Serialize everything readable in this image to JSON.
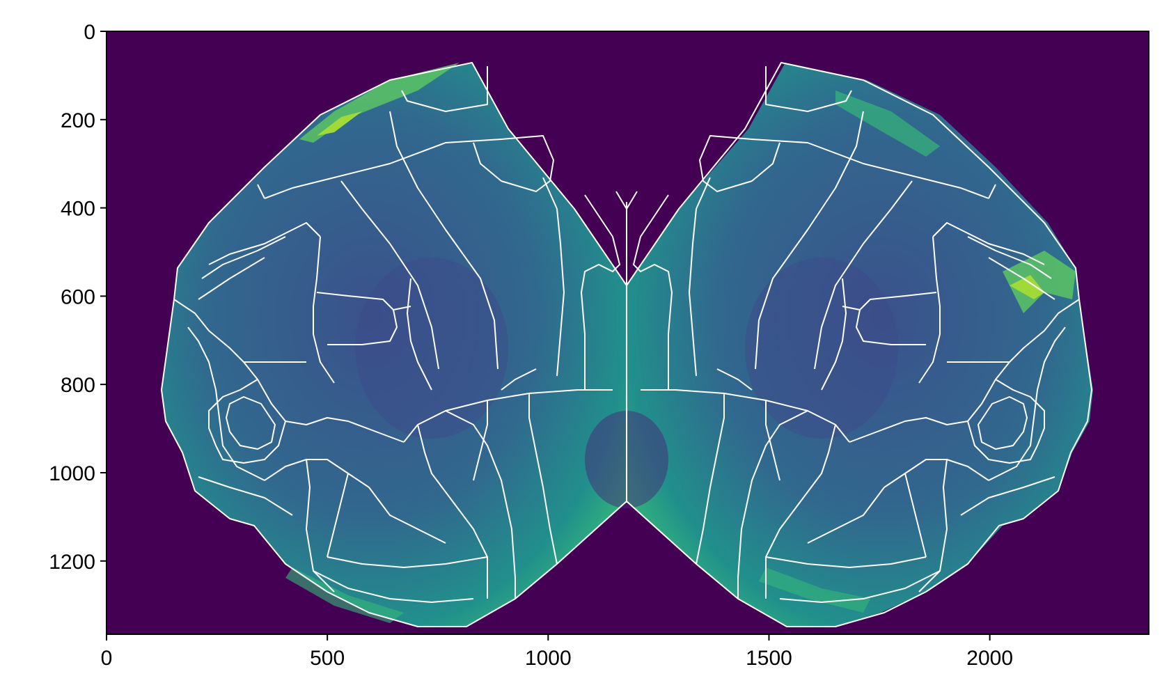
{
  "chart_data": {
    "type": "heatmap",
    "title": "",
    "xlabel": "",
    "ylabel": "",
    "x_range": [
      0,
      2360
    ],
    "y_range": [
      0,
      1366
    ],
    "y_inverted": true,
    "x_ticks": [
      0,
      500,
      1000,
      1500,
      2000
    ],
    "y_ticks": [
      0,
      200,
      400,
      600,
      800,
      1000,
      1200
    ],
    "x_tick_labels": [
      "0",
      "500",
      "1000",
      "1500",
      "2000"
    ],
    "y_tick_labels": [
      "0",
      "200",
      "400",
      "600",
      "800",
      "1000",
      "1200"
    ],
    "colormap": "viridis",
    "background_color": "#440154",
    "boundary_color": "#ffffff",
    "grid": false,
    "legend": "none",
    "description_values": {
      "hemispheres": 2,
      "midline_x": 1178
    }
  }
}
